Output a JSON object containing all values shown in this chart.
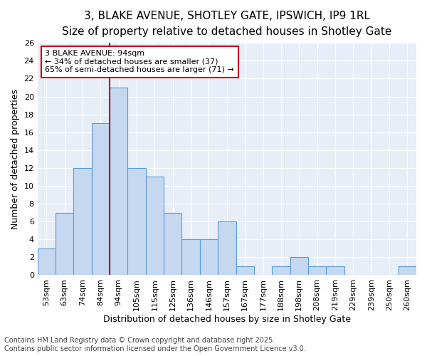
{
  "title_line1": "3, BLAKE AVENUE, SHOTLEY GATE, IPSWICH, IP9 1RL",
  "title_line2": "Size of property relative to detached houses in Shotley Gate",
  "xlabel": "Distribution of detached houses by size in Shotley Gate",
  "ylabel": "Number of detached properties",
  "categories": [
    "53sqm",
    "63sqm",
    "74sqm",
    "84sqm",
    "94sqm",
    "105sqm",
    "115sqm",
    "125sqm",
    "136sqm",
    "146sqm",
    "157sqm",
    "167sqm",
    "177sqm",
    "188sqm",
    "198sqm",
    "208sqm",
    "219sqm",
    "229sqm",
    "239sqm",
    "250sqm",
    "260sqm"
  ],
  "values": [
    3,
    7,
    12,
    17,
    21,
    12,
    11,
    7,
    4,
    4,
    6,
    1,
    0,
    1,
    2,
    1,
    1,
    0,
    0,
    0,
    1
  ],
  "bar_color": "#c5d8f0",
  "bar_edge_color": "#5b9bd5",
  "highlight_index": 4,
  "highlight_color": "#c00000",
  "ylim": [
    0,
    26
  ],
  "yticks": [
    0,
    2,
    4,
    6,
    8,
    10,
    12,
    14,
    16,
    18,
    20,
    22,
    24,
    26
  ],
  "annotation_title": "3 BLAKE AVENUE: 94sqm",
  "annotation_line1": "← 34% of detached houses are smaller (37)",
  "annotation_line2": "65% of semi-detached houses are larger (71) →",
  "annotation_box_color": "#ffffff",
  "annotation_box_edge": "#c00000",
  "footer_line1": "Contains HM Land Registry data © Crown copyright and database right 2025.",
  "footer_line2": "Contains public sector information licensed under the Open Government Licence v3.0.",
  "bg_color": "#ffffff",
  "plot_bg_color": "#e8eef7",
  "grid_color": "#ffffff",
  "title_fontsize": 11,
  "subtitle_fontsize": 10,
  "axis_label_fontsize": 9,
  "tick_fontsize": 8,
  "annotation_fontsize": 8,
  "footer_fontsize": 7
}
